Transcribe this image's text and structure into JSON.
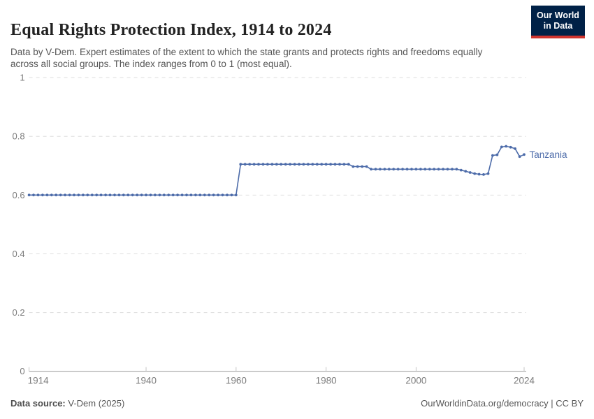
{
  "header": {
    "title": "Equal Rights Protection Index, 1914 to 2024",
    "subtitle": "Data by V-Dem. Expert estimates of the extent to which the state grants and protects rights and freedoms equally across all social groups. The index ranges from 0 to 1 (most equal).",
    "logo": {
      "line1": "Our World",
      "line2": "in Data",
      "bg_color": "#002147",
      "accent_color": "#cf342e"
    }
  },
  "chart_data": {
    "type": "line",
    "title": "Equal Rights Protection Index, 1914 to 2024",
    "xlabel": "",
    "ylabel": "",
    "xlim": [
      1914,
      2024
    ],
    "ylim": [
      0,
      1
    ],
    "x_ticks": [
      1914,
      1940,
      1960,
      1980,
      2000,
      2024
    ],
    "y_ticks": [
      0,
      0.2,
      0.4,
      0.6,
      0.8,
      1
    ],
    "grid": "horizontal-dashed",
    "legend_position": "end-of-line-label",
    "series": [
      {
        "name": "Tanzania",
        "color": "#4c6ba9",
        "x_start": 1914,
        "x_end": 2024,
        "values": [
          0.6,
          0.6,
          0.6,
          0.6,
          0.6,
          0.6,
          0.6,
          0.6,
          0.6,
          0.6,
          0.6,
          0.6,
          0.6,
          0.6,
          0.6,
          0.6,
          0.6,
          0.6,
          0.6,
          0.6,
          0.6,
          0.6,
          0.6,
          0.6,
          0.6,
          0.6,
          0.6,
          0.6,
          0.6,
          0.6,
          0.6,
          0.6,
          0.6,
          0.6,
          0.6,
          0.6,
          0.6,
          0.6,
          0.6,
          0.6,
          0.6,
          0.6,
          0.6,
          0.6,
          0.6,
          0.6,
          0.6,
          0.705,
          0.705,
          0.705,
          0.705,
          0.705,
          0.705,
          0.705,
          0.705,
          0.705,
          0.705,
          0.705,
          0.705,
          0.705,
          0.705,
          0.705,
          0.705,
          0.705,
          0.705,
          0.705,
          0.705,
          0.705,
          0.705,
          0.705,
          0.705,
          0.705,
          0.697,
          0.697,
          0.697,
          0.697,
          0.688,
          0.688,
          0.688,
          0.688,
          0.688,
          0.688,
          0.688,
          0.688,
          0.688,
          0.688,
          0.688,
          0.688,
          0.688,
          0.688,
          0.688,
          0.688,
          0.688,
          0.688,
          0.688,
          0.688,
          0.685,
          0.681,
          0.677,
          0.673,
          0.671,
          0.67,
          0.673,
          0.735,
          0.737,
          0.764,
          0.766,
          0.763,
          0.758,
          0.731,
          0.738
        ]
      }
    ]
  },
  "footer": {
    "source_label": "Data source:",
    "source_value": " V-Dem (2025)",
    "credit": "OurWorldinData.org/democracy | CC BY"
  },
  "colors": {
    "line": "#4c6ba9",
    "grid": "#dddddd",
    "axis": "#999999",
    "tick_label": "#7c7c7c",
    "title": "#222222",
    "subtitle": "#555555",
    "logo_bg": "#002147",
    "logo_accent": "#cf342e"
  }
}
